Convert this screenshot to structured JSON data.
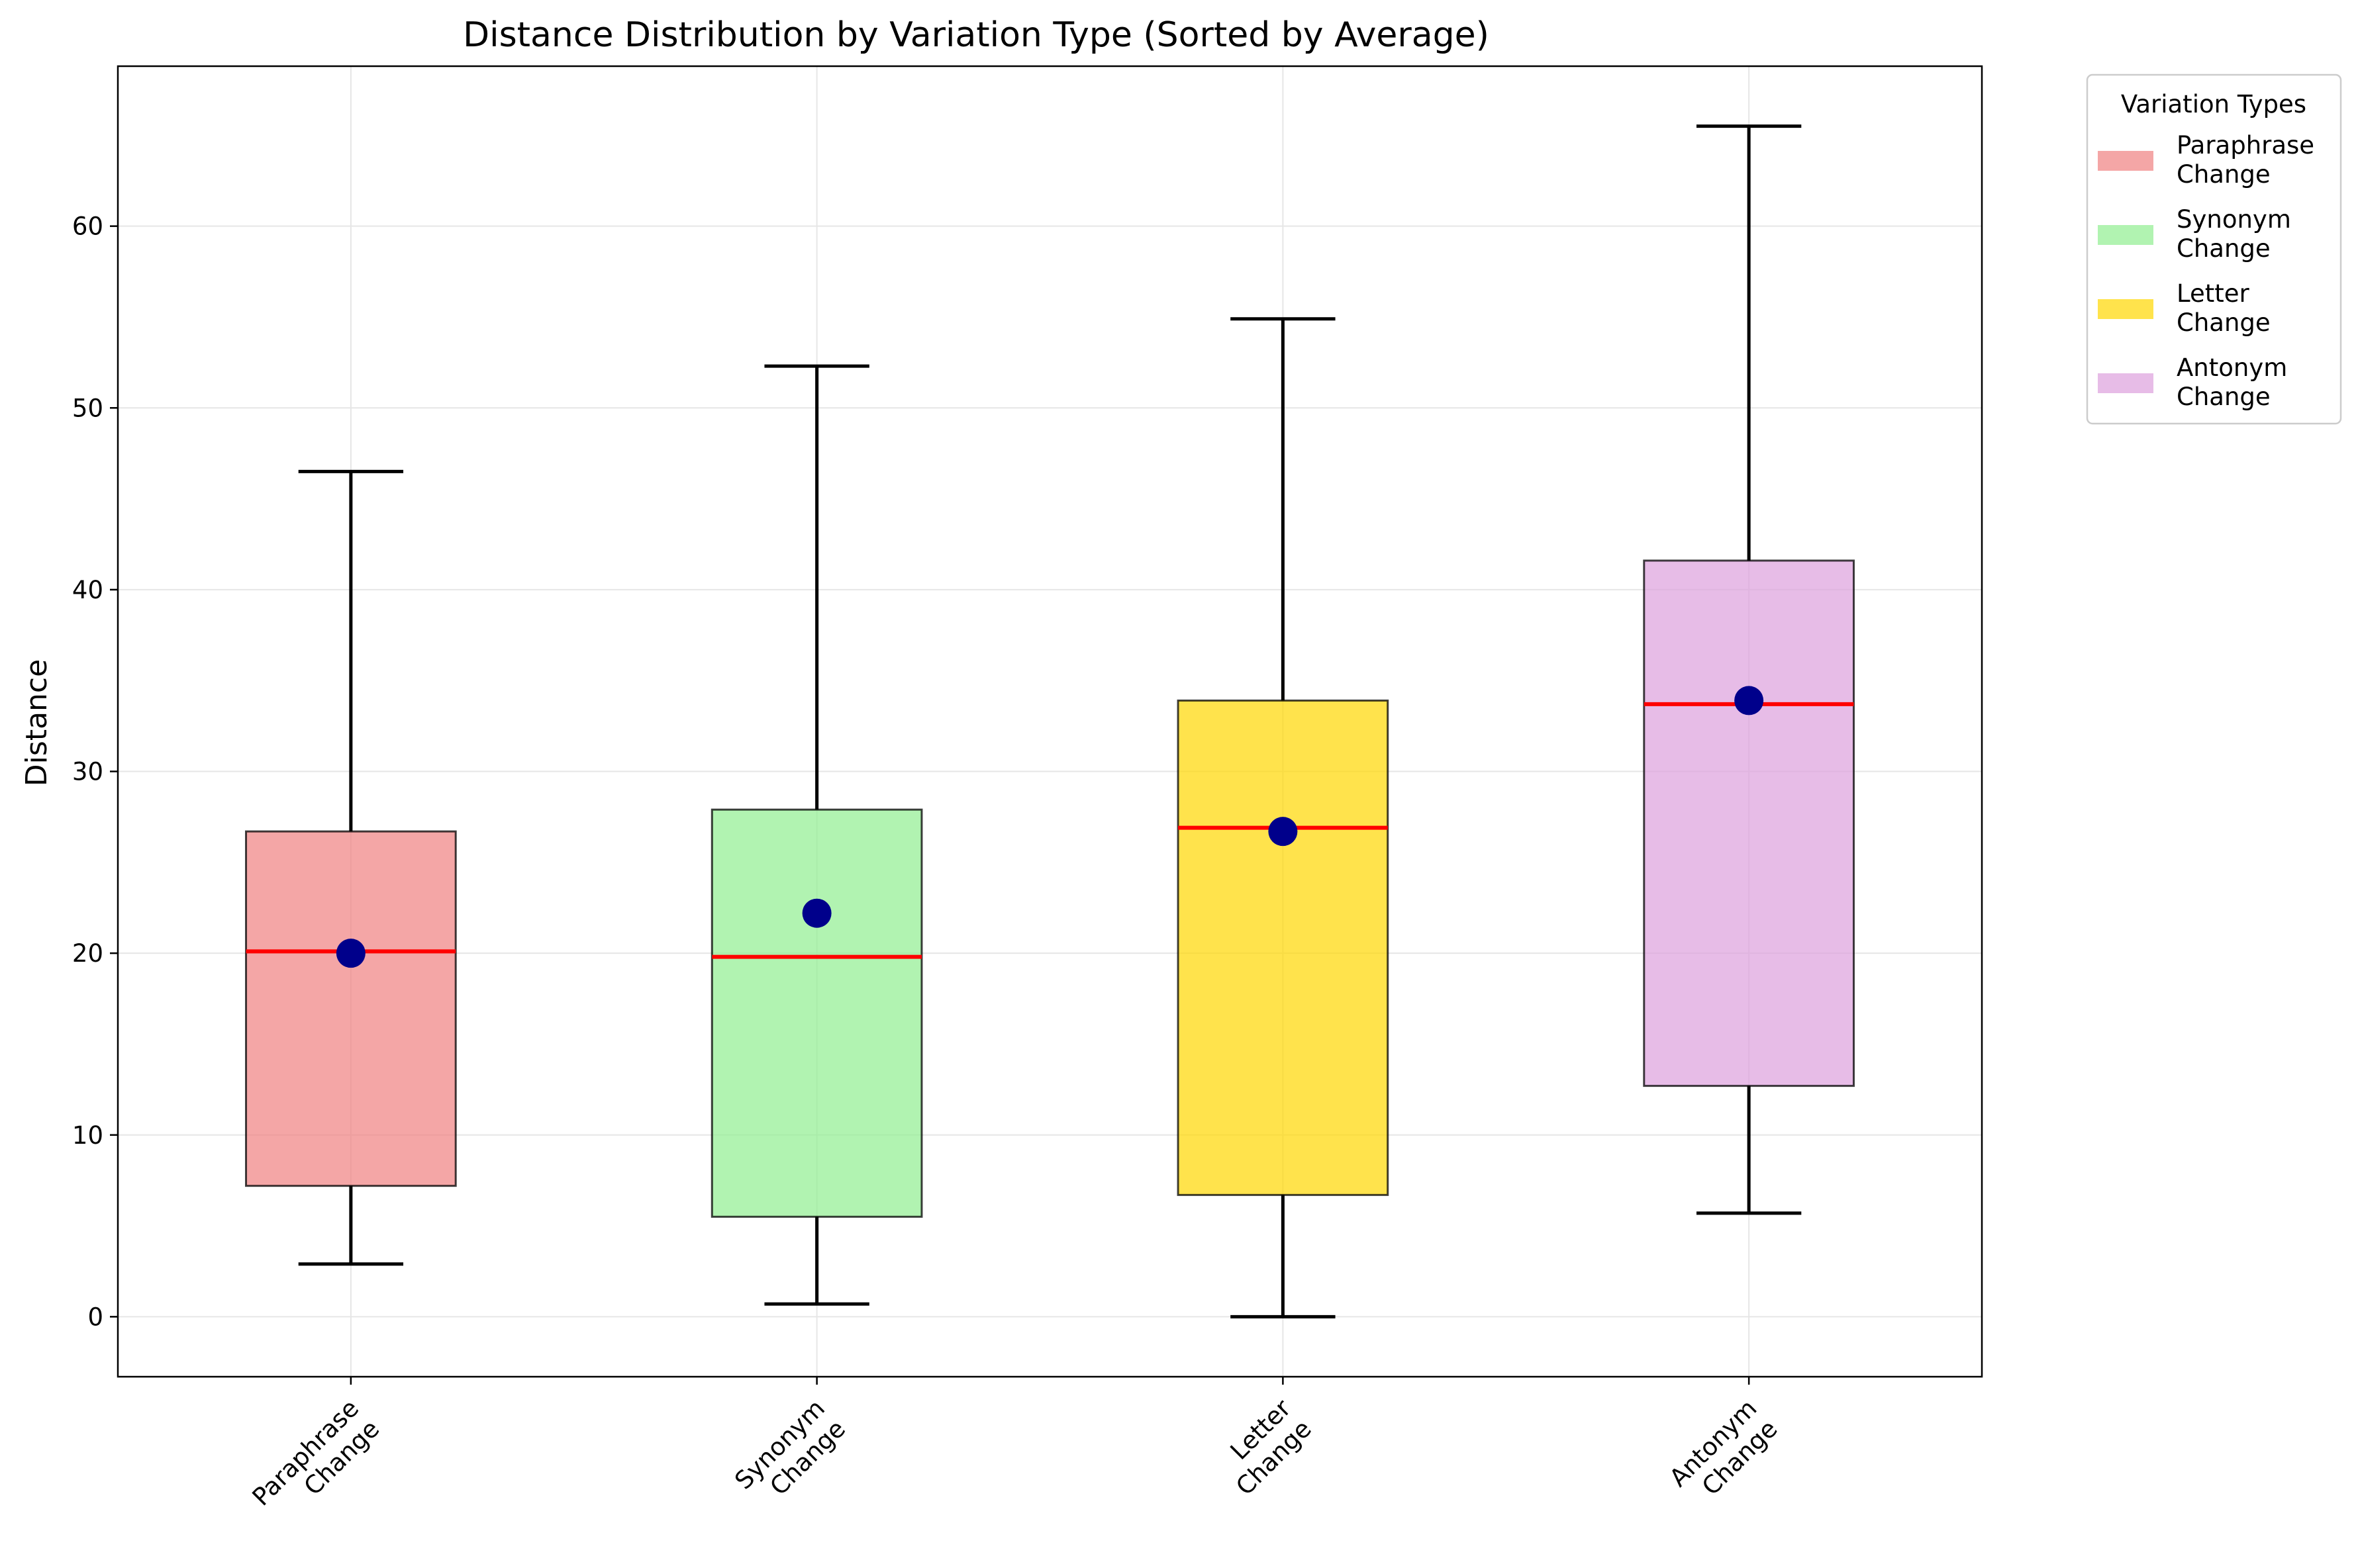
{
  "chart_data": {
    "type": "box",
    "title": "Distance Distribution by Variation Type (Sorted by Average)",
    "xlabel": "",
    "ylabel": "Distance",
    "ylim": [
      -3.3,
      68.8
    ],
    "yticks": [
      0,
      10,
      20,
      30,
      40,
      50,
      60
    ],
    "grid": true,
    "legend": {
      "title": "Variation Types",
      "placement": "outside-top-right"
    },
    "series": [
      {
        "category": [
          "Paraphrase",
          "Change"
        ],
        "legend": [
          "Paraphrase",
          "Change"
        ],
        "color": "#f08080",
        "min": 2.9,
        "q1": 7.2,
        "median": 20.1,
        "q3": 26.7,
        "max": 46.5,
        "mean": 20.0
      },
      {
        "category": [
          "Synonym",
          "Change"
        ],
        "legend": [
          "Synonym",
          "Change"
        ],
        "color": "#90ee90",
        "min": 0.7,
        "q1": 5.5,
        "median": 19.8,
        "q3": 27.9,
        "max": 52.3,
        "mean": 22.2
      },
      {
        "category": [
          "Letter",
          "Change"
        ],
        "legend": [
          "Letter",
          "Change"
        ],
        "color": "#ffd700",
        "min": 0.0,
        "q1": 6.7,
        "median": 26.9,
        "q3": 33.9,
        "max": 54.9,
        "mean": 26.7
      },
      {
        "category": [
          "Antonym",
          "Change"
        ],
        "legend": [
          "Antonym",
          "Change"
        ],
        "color": "#dda0dd",
        "min": 5.7,
        "q1": 12.7,
        "median": 33.7,
        "q3": 41.6,
        "max": 65.5,
        "mean": 33.9
      }
    ],
    "colors": {
      "median": "#ff0000",
      "mean": "#00008b",
      "whisker": "#000000",
      "grid": "#e6e6e6"
    }
  }
}
